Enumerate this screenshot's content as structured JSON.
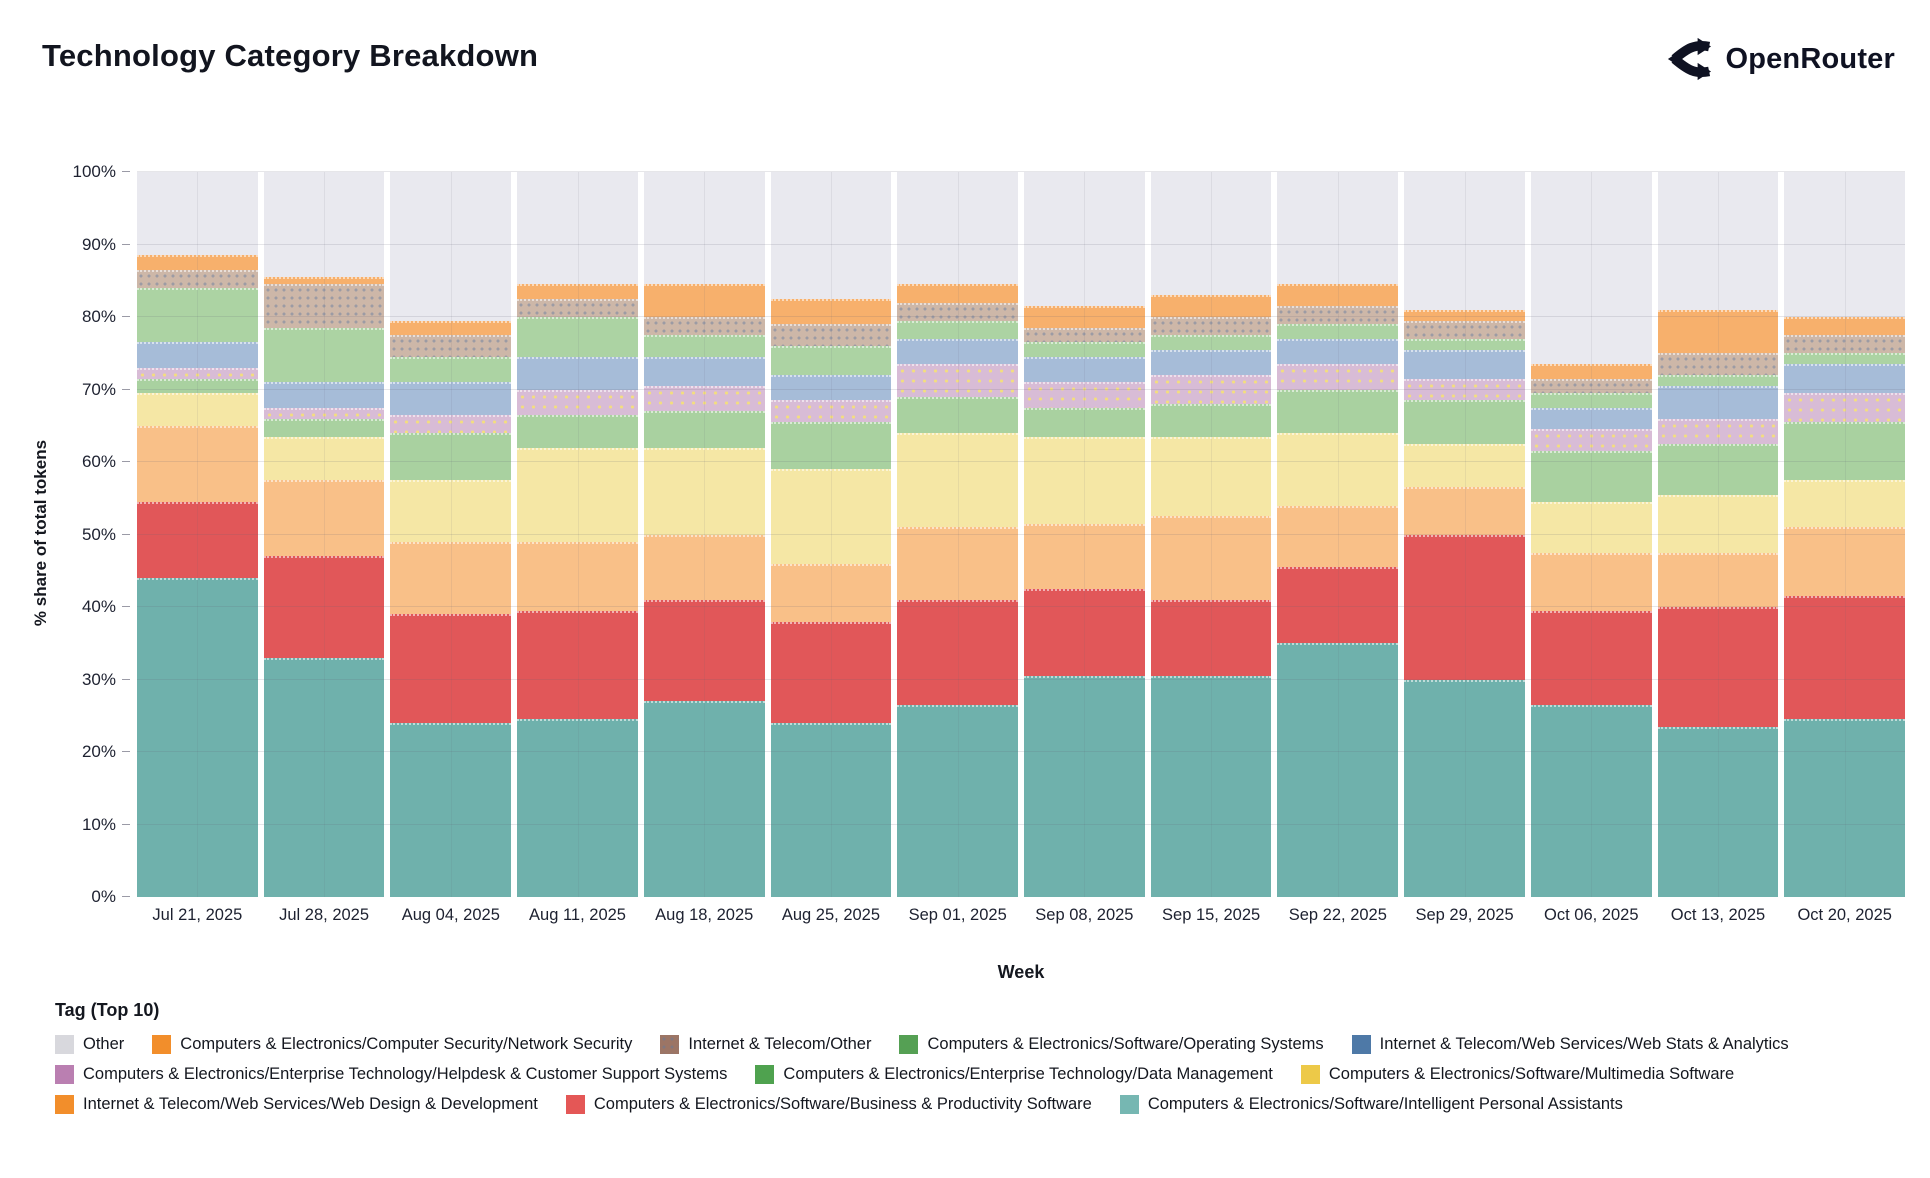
{
  "header": {
    "title": "Technology Category Breakdown",
    "logo_text": "OpenRouter"
  },
  "chart_data": {
    "type": "bar",
    "stacked": true,
    "unit": "percent",
    "xlabel": "Week",
    "ylabel": "% share of total tokens",
    "ylim": [
      0,
      100
    ],
    "grid": true,
    "x": [
      "Jul 21, 2025",
      "Jul 28, 2025",
      "Aug 04, 2025",
      "Aug 11, 2025",
      "Aug 18, 2025",
      "Aug 25, 2025",
      "Sep 01, 2025",
      "Sep 08, 2025",
      "Sep 15, 2025",
      "Sep 22, 2025",
      "Sep 29, 2025",
      "Oct 06, 2025",
      "Oct 13, 2025",
      "Oct 20, 2025"
    ],
    "yticks": [
      {
        "label": "0%",
        "value": 0
      },
      {
        "label": "10%",
        "value": 10
      },
      {
        "label": "20%",
        "value": 20
      },
      {
        "label": "30%",
        "value": 30
      },
      {
        "label": "40%",
        "value": 40
      },
      {
        "label": "50%",
        "value": 50
      },
      {
        "label": "60%",
        "value": 60
      },
      {
        "label": "70%",
        "value": 70
      },
      {
        "label": "80%",
        "value": 80
      },
      {
        "label": "90%",
        "value": 90
      },
      {
        "label": "100%",
        "value": 100
      }
    ],
    "series": [
      {
        "key": "ipa",
        "name": "Computers & Electronics/Software/Intelligent Personal Assistants",
        "bar_color": "#6FB1AC",
        "values": [
          44,
          33,
          24,
          24.5,
          27,
          24,
          26.5,
          30.5,
          30.5,
          35,
          30,
          26.5,
          23.5,
          24.5
        ]
      },
      {
        "key": "busprod",
        "name": "Computers & Electronics/Software/Business & Productivity Software",
        "bar_color": "#E15759",
        "values": [
          10.5,
          14,
          15,
          15,
          14,
          14,
          14.5,
          12,
          10.5,
          10.5,
          20,
          13,
          16.5,
          17
        ]
      },
      {
        "key": "webdesign",
        "name": "Internet & Telecom/Web Services/Web Design & Development",
        "bar_color": "#F9C088",
        "values": [
          10.5,
          10.5,
          10,
          9.5,
          9,
          8,
          10,
          9,
          11.5,
          8.5,
          6.5,
          8,
          7.5,
          9.5
        ]
      },
      {
        "key": "multimedia",
        "name": "Computers & Electronics/Software/Multimedia Software",
        "bar_color": "#F5E7A5",
        "values": [
          4.5,
          6,
          8.5,
          13,
          12,
          13,
          13,
          12,
          11,
          10,
          6,
          7,
          8,
          6.5
        ]
      },
      {
        "key": "datamgmt",
        "name": "Computers & Electronics/Enterprise Technology/Data Management",
        "bar_color": "#A9D1A0",
        "values": [
          2,
          2.5,
          6.5,
          4.5,
          5,
          6.5,
          5,
          4,
          4.5,
          6,
          6,
          7,
          7,
          8
        ]
      },
      {
        "key": "helpdesk",
        "name": "Computers & Electronics/Enterprise Technology/Helpdesk & Customer Support Systems",
        "bar_color": "#D8BCD6",
        "pattern": "dots-yellow",
        "values": [
          1.5,
          1.5,
          2.5,
          3.5,
          3.5,
          3,
          4.5,
          3.5,
          4,
          3.5,
          3,
          3,
          3.5,
          4
        ]
      },
      {
        "key": "webstats",
        "name": "Internet & Telecom/Web Services/Web Stats & Analytics",
        "bar_color": "#A6BCD8",
        "values": [
          3.5,
          3.5,
          4.5,
          4.5,
          4,
          3.5,
          3.5,
          3.5,
          3.5,
          3.5,
          4,
          3,
          4.5,
          4
        ]
      },
      {
        "key": "os",
        "name": "Computers & Electronics/Software/Operating Systems",
        "bar_color": "#ACD3A3",
        "values": [
          7.5,
          7.5,
          3.5,
          5.5,
          3,
          4,
          2.5,
          2,
          2,
          2,
          1.5,
          2,
          1.5,
          1.5
        ]
      },
      {
        "key": "itother",
        "name": "Internet & Telecom/Other",
        "bar_color": "#CDB7A8",
        "pattern": "dots-blue",
        "values": [
          2.5,
          6,
          3,
          2.5,
          2.5,
          3,
          2.5,
          2,
          2.5,
          2.5,
          2.5,
          2,
          3,
          2.5
        ]
      },
      {
        "key": "netsec",
        "name": "Computers & Electronics/Computer Security/Network Security",
        "bar_color": "#F7B06C",
        "values": [
          2,
          1,
          2,
          2,
          4.5,
          3.5,
          2.5,
          3,
          3,
          3,
          1.5,
          2,
          6,
          2.5
        ]
      },
      {
        "key": "other",
        "name": "Other",
        "bar_color": "#E9E9EF",
        "values": [
          11.5,
          14.5,
          20.5,
          15.5,
          15.5,
          17.5,
          15.5,
          18.5,
          17,
          15.5,
          19,
          26.5,
          19,
          20
        ]
      }
    ]
  },
  "legend": {
    "title": "Tag (Top 10)",
    "items": [
      {
        "label": "Other",
        "color": "#D8D8DD"
      },
      {
        "label": "Computers & Electronics/Computer Security/Network Security",
        "color": "#F28E2B"
      },
      {
        "label": "Internet & Telecom/Other",
        "color": "#9C7565",
        "pattern": "dots-blue"
      },
      {
        "label": "Computers & Electronics/Software/Operating Systems",
        "color": "#55A054"
      },
      {
        "label": "Internet & Telecom/Web Services/Web Stats & Analytics",
        "color": "#4E79A7"
      },
      {
        "label": "Computers & Electronics/Enterprise Technology/Helpdesk & Customer Support Systems",
        "color": "#BA7FB1"
      },
      {
        "label": "Computers & Electronics/Enterprise Technology/Data Management",
        "color": "#4FA24F"
      },
      {
        "label": "Computers & Electronics/Software/Multimedia Software",
        "color": "#EDC948"
      },
      {
        "label": "Internet & Telecom/Web Services/Web Design & Development",
        "color": "#F28E2B"
      },
      {
        "label": "Computers & Electronics/Software/Business & Productivity Software",
        "color": "#E45756"
      },
      {
        "label": "Computers & Electronics/Software/Intelligent Personal Assistants",
        "color": "#76B7B2"
      }
    ]
  }
}
